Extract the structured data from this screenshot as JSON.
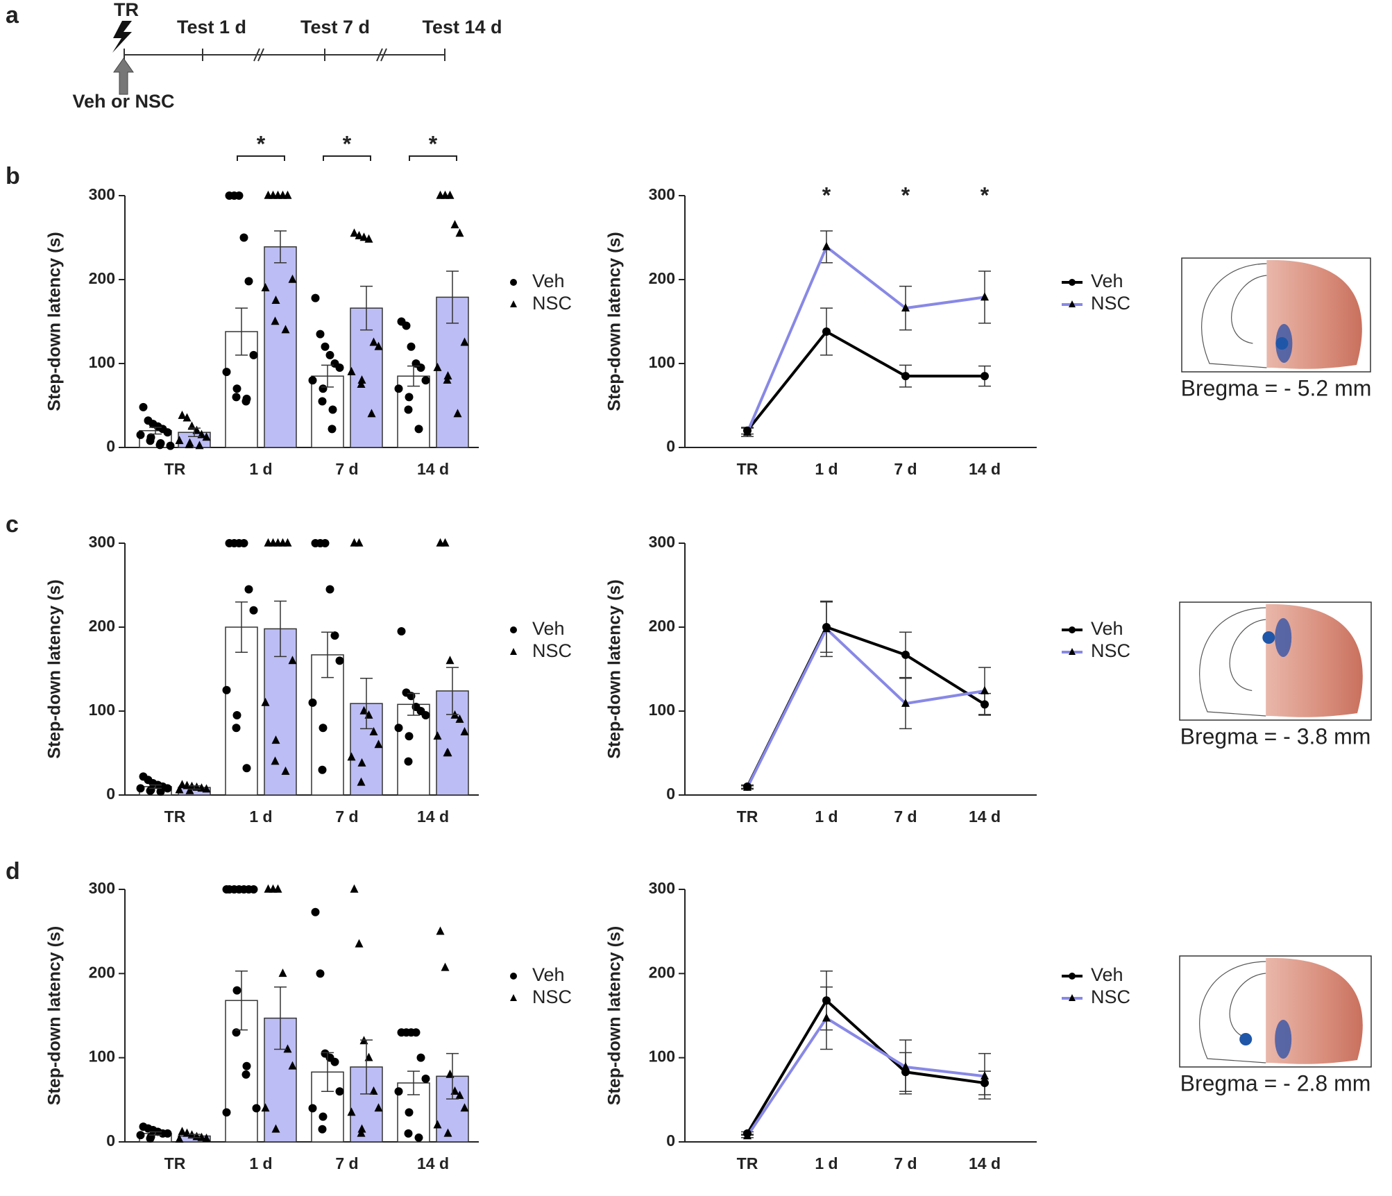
{
  "panel_labels": [
    "a",
    "b",
    "c",
    "d"
  ],
  "timeline": {
    "labels": [
      "TR",
      "Test 1 d",
      "Test 7 d",
      "Test 14 d"
    ],
    "treatment": "Veh or NSC"
  },
  "brain_sections": [
    {
      "label": "Bregma = - 5.2 mm"
    },
    {
      "label": "Bregma = - 3.8 mm"
    },
    {
      "label": "Bregma = - 2.8 mm"
    }
  ],
  "chart_data": [
    {
      "type": "bar",
      "y_label": "Step-down latency (s)",
      "categories": [
        "TR",
        "1 d",
        "7 d",
        "14 d"
      ],
      "ylim": [
        0,
        300
      ],
      "yticks": [
        0,
        100,
        200,
        300
      ],
      "significance": [
        null,
        "*",
        "*",
        "*"
      ],
      "series": [
        {
          "name": "Veh",
          "color": "#ffffff",
          "marker": "circle",
          "values": [
            20,
            138,
            85,
            85
          ],
          "errors": [
            4,
            28,
            13,
            12
          ],
          "points": [
            [
              48,
              32,
              28,
              25,
              22,
              18,
              15,
              12,
              8,
              5,
              3,
              2
            ],
            [
              300,
              300,
              300,
              250,
              198,
              110,
              90,
              70,
              60,
              58,
              55
            ],
            [
              178,
              135,
              120,
              110,
              100,
              95,
              80,
              70,
              55,
              45,
              22
            ],
            [
              150,
              145,
              120,
              100,
              95,
              80,
              70,
              60,
              45,
              22
            ]
          ]
        },
        {
          "name": "NSC",
          "color": "#bdbdf5",
          "marker": "triangle",
          "values": [
            18,
            239,
            166,
            179
          ],
          "errors": [
            5,
            19,
            26,
            31
          ],
          "points": [
            [
              38,
              35,
              25,
              20,
              15,
              12,
              8,
              5,
              3,
              2
            ],
            [
              300,
              300,
              300,
              300,
              300,
              200,
              190,
              175,
              150,
              140
            ],
            [
              255,
              252,
              250,
              248,
              125,
              120,
              90,
              80,
              75,
              40
            ],
            [
              300,
              300,
              300,
              265,
              255,
              125,
              95,
              85,
              80,
              40
            ]
          ]
        }
      ]
    },
    {
      "type": "line",
      "y_label": "Step-down latency (s)",
      "categories": [
        "TR",
        "1 d",
        "7 d",
        "14 d"
      ],
      "ylim": [
        0,
        300
      ],
      "yticks": [
        0,
        100,
        200,
        300
      ],
      "significance": [
        null,
        "*",
        "*",
        "*"
      ],
      "series": [
        {
          "name": "Veh",
          "color": "#000000",
          "marker": "circle",
          "values": [
            20,
            138,
            85,
            85
          ],
          "errors": [
            4,
            28,
            13,
            12
          ]
        },
        {
          "name": "NSC",
          "color": "#8888e6",
          "marker": "triangle",
          "values": [
            18,
            239,
            166,
            179
          ],
          "errors": [
            5,
            19,
            26,
            31
          ]
        }
      ]
    },
    {
      "type": "bar",
      "y_label": "Step-down latency (s)",
      "categories": [
        "TR",
        "1 d",
        "7 d",
        "14 d"
      ],
      "ylim": [
        0,
        300
      ],
      "yticks": [
        0,
        100,
        200,
        300
      ],
      "series": [
        {
          "name": "Veh",
          "color": "#ffffff",
          "marker": "circle",
          "values": [
            10,
            200,
            167,
            108
          ],
          "errors": [
            2,
            30,
            27,
            13
          ],
          "points": [
            [
              22,
              18,
              14,
              12,
              10,
              8,
              8,
              6,
              5,
              4
            ],
            [
              300,
              300,
              300,
              300,
              245,
              220,
              125,
              95,
              80,
              32
            ],
            [
              300,
              300,
              300,
              245,
              190,
              160,
              110,
              80,
              30
            ],
            [
              195,
              122,
              118,
              105,
              100,
              95,
              80,
              70,
              40
            ]
          ]
        },
        {
          "name": "NSC",
          "color": "#bdbdf5",
          "marker": "triangle",
          "values": [
            9,
            198,
            109,
            124
          ],
          "errors": [
            2,
            33,
            30,
            28
          ],
          "points": [
            [
              12,
              11,
              10,
              9,
              8,
              7,
              6,
              5
            ],
            [
              300,
              300,
              300,
              300,
              300,
              160,
              110,
              65,
              40,
              28
            ],
            [
              300,
              300,
              100,
              95,
              75,
              60,
              45,
              38,
              15
            ],
            [
              300,
              300,
              160,
              95,
              90,
              75,
              70,
              50,
              50
            ]
          ]
        }
      ]
    },
    {
      "type": "line",
      "y_label": "Step-down latency (s)",
      "categories": [
        "TR",
        "1 d",
        "7 d",
        "14 d"
      ],
      "ylim": [
        0,
        300
      ],
      "yticks": [
        0,
        100,
        200,
        300
      ],
      "series": [
        {
          "name": "Veh",
          "color": "#000000",
          "marker": "circle",
          "values": [
            10,
            200,
            167,
            108
          ],
          "errors": [
            2,
            30,
            27,
            13
          ]
        },
        {
          "name": "NSC",
          "color": "#8888e6",
          "marker": "triangle",
          "values": [
            9,
            198,
            109,
            124
          ],
          "errors": [
            2,
            33,
            30,
            28
          ]
        }
      ]
    },
    {
      "type": "bar",
      "y_label": "Step-down latency (s)",
      "categories": [
        "TR",
        "1 d",
        "7 d",
        "14 d"
      ],
      "ylim": [
        0,
        300
      ],
      "yticks": [
        0,
        100,
        200,
        300
      ],
      "series": [
        {
          "name": "Veh",
          "color": "#ffffff",
          "marker": "circle",
          "values": [
            10,
            168,
            83,
            70
          ],
          "errors": [
            2,
            35,
            23,
            14
          ],
          "points": [
            [
              18,
              16,
              14,
              12,
              10,
              10,
              8,
              6,
              4
            ],
            [
              300,
              300,
              300,
              300,
              300,
              300,
              300,
              180,
              130,
              90,
              80,
              40,
              35
            ],
            [
              273,
              200,
              105,
              100,
              95,
              60,
              40,
              30,
              15
            ],
            [
              130,
              130,
              130,
              130,
              100,
              75,
              60,
              35,
              10,
              5
            ]
          ]
        },
        {
          "name": "NSC",
          "color": "#bdbdf5",
          "marker": "triangle",
          "values": [
            7,
            147,
            89,
            78
          ],
          "errors": [
            2,
            37,
            32,
            27
          ],
          "points": [
            [
              12,
              10,
              8,
              6,
              5,
              4,
              3
            ],
            [
              300,
              300,
              300,
              200,
              110,
              90,
              40,
              15
            ],
            [
              300,
              235,
              120,
              100,
              60,
              40,
              35,
              15,
              10
            ],
            [
              250,
              207,
              80,
              60,
              55,
              40,
              20,
              10
            ]
          ]
        }
      ]
    },
    {
      "type": "line",
      "y_label": "Step-down latency (s)",
      "categories": [
        "TR",
        "1 d",
        "7 d",
        "14 d"
      ],
      "ylim": [
        0,
        300
      ],
      "yticks": [
        0,
        100,
        200,
        300
      ],
      "series": [
        {
          "name": "Veh",
          "color": "#000000",
          "marker": "circle",
          "values": [
            10,
            168,
            83,
            70
          ],
          "errors": [
            2,
            35,
            23,
            14
          ]
        },
        {
          "name": "NSC",
          "color": "#8888e6",
          "marker": "triangle",
          "values": [
            7,
            147,
            89,
            78
          ],
          "errors": [
            2,
            37,
            32,
            27
          ]
        }
      ]
    }
  ]
}
